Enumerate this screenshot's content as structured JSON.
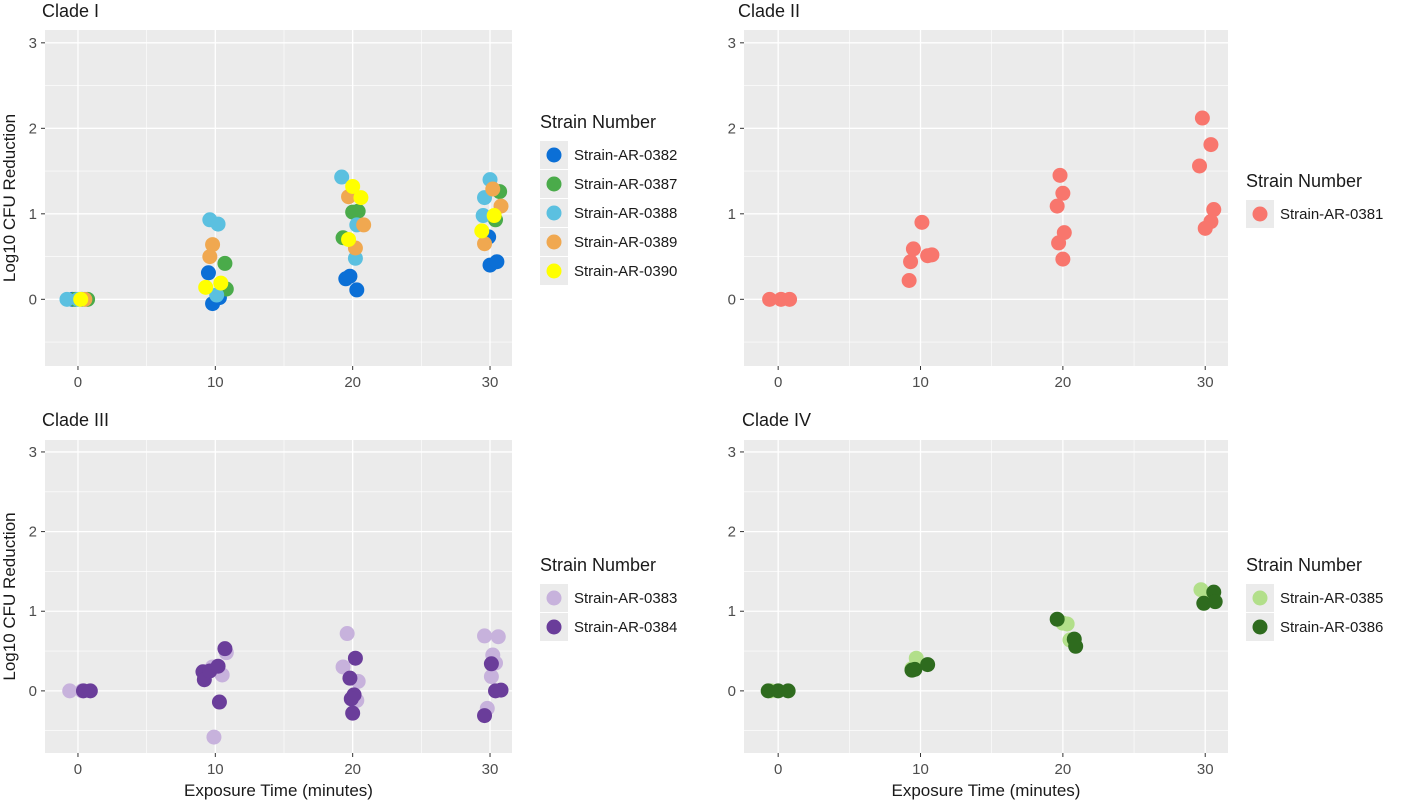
{
  "figure": {
    "xlabel": "Exposure Time (minutes)",
    "ylabel": "Log10 CFU Reduction",
    "legend_title": "Strain Number",
    "colors": {
      "panel_bg": "#ebebeb",
      "grid": "#ffffff"
    }
  },
  "chart_data": [
    {
      "type": "scatter",
      "title": "Clade I",
      "xlabel": "",
      "ylabel": "Log10 CFU Reduction",
      "x_ticks": [
        0,
        10,
        20,
        30
      ],
      "y_ticks": [
        0,
        1,
        2,
        3
      ],
      "xlim": [
        -2.4,
        31.6
      ],
      "ylim": [
        -0.78,
        3.15
      ],
      "grid": true,
      "legend_title": "Strain Number",
      "legend_position": "right",
      "series": [
        {
          "name": "Strain-AR-0382",
          "color": "#0b6fd6",
          "points": [
            [
              -0.4,
              0
            ],
            [
              0.3,
              0
            ],
            [
              9.5,
              0.31
            ],
            [
              9.8,
              -0.05
            ],
            [
              10.3,
              0.02
            ],
            [
              19.5,
              0.24
            ],
            [
              19.8,
              0.27
            ],
            [
              20.3,
              0.11
            ],
            [
              29.9,
              0.73
            ],
            [
              30.0,
              0.4
            ],
            [
              30.5,
              0.44
            ]
          ]
        },
        {
          "name": "Strain-AR-0387",
          "color": "#4aab4a",
          "points": [
            [
              -0.2,
              0
            ],
            [
              0.7,
              0
            ],
            [
              10.7,
              0.42
            ],
            [
              10.8,
              0.12
            ],
            [
              19.3,
              0.72
            ],
            [
              20.0,
              1.02
            ],
            [
              20.4,
              1.03
            ],
            [
              30.7,
              1.26
            ],
            [
              30.4,
              0.93
            ]
          ]
        },
        {
          "name": "Strain-AR-0388",
          "color": "#5bc0e0",
          "points": [
            [
              -0.8,
              0
            ],
            [
              0.0,
              0
            ],
            [
              9.6,
              0.93
            ],
            [
              10.2,
              0.88
            ],
            [
              10.1,
              0.05
            ],
            [
              19.2,
              1.43
            ],
            [
              20.3,
              0.87
            ],
            [
              20.2,
              0.48
            ],
            [
              29.5,
              0.98
            ],
            [
              29.6,
              1.19
            ],
            [
              30.0,
              1.4
            ]
          ]
        },
        {
          "name": "Strain-AR-0389",
          "color": "#f0a850",
          "points": [
            [
              0.5,
              0
            ],
            [
              9.8,
              0.64
            ],
            [
              9.6,
              0.5
            ],
            [
              19.7,
              1.2
            ],
            [
              20.2,
              0.6
            ],
            [
              20.8,
              0.87
            ],
            [
              30.2,
              1.29
            ],
            [
              30.8,
              1.09
            ],
            [
              29.6,
              0.65
            ]
          ]
        },
        {
          "name": "Strain-AR-0390",
          "color": "#ffff00",
          "points": [
            [
              0.2,
              0
            ],
            [
              9.3,
              0.14
            ],
            [
              10.4,
              0.19
            ],
            [
              19.7,
              0.7
            ],
            [
              20.0,
              1.32
            ],
            [
              20.6,
              1.19
            ],
            [
              29.4,
              0.8
            ],
            [
              30.3,
              0.98
            ]
          ]
        }
      ]
    },
    {
      "type": "scatter",
      "title": "Clade II",
      "xlabel": "",
      "ylabel": "",
      "x_ticks": [
        0,
        10,
        20,
        30
      ],
      "y_ticks": [
        0,
        1,
        2,
        3
      ],
      "xlim": [
        -2.4,
        31.6
      ],
      "ylim": [
        -0.78,
        3.15
      ],
      "grid": true,
      "legend_title": "Strain Number",
      "legend_position": "right",
      "series": [
        {
          "name": "Strain-AR-0381",
          "color": "#f8766d",
          "points": [
            [
              -0.6,
              0
            ],
            [
              0.2,
              0
            ],
            [
              0.8,
              0
            ],
            [
              9.3,
              0.44
            ],
            [
              9.2,
              0.22
            ],
            [
              9.5,
              0.59
            ],
            [
              10.1,
              0.9
            ],
            [
              10.5,
              0.51
            ],
            [
              10.8,
              0.52
            ],
            [
              19.6,
              1.09
            ],
            [
              19.8,
              1.45
            ],
            [
              20.0,
              1.24
            ],
            [
              19.7,
              0.66
            ],
            [
              20.1,
              0.78
            ],
            [
              20.0,
              0.47
            ],
            [
              29.6,
              1.56
            ],
            [
              29.8,
              2.12
            ],
            [
              30.4,
              1.81
            ],
            [
              30.6,
              1.05
            ],
            [
              30.4,
              0.91
            ],
            [
              30.0,
              0.83
            ]
          ]
        }
      ]
    },
    {
      "type": "scatter",
      "title": "Clade III",
      "xlabel": "Exposure Time (minutes)",
      "ylabel": "Log10 CFU Reduction",
      "x_ticks": [
        0,
        10,
        20,
        30
      ],
      "y_ticks": [
        0,
        1,
        2,
        3
      ],
      "xlim": [
        -2.4,
        31.6
      ],
      "ylim": [
        -0.78,
        3.15
      ],
      "grid": true,
      "legend_title": "Strain Number",
      "legend_position": "right",
      "series": [
        {
          "name": "Strain-AR-0383",
          "color": "#c7b2dc",
          "points": [
            [
              -0.6,
              0
            ],
            [
              0.3,
              0
            ],
            [
              9.9,
              -0.58
            ],
            [
              10.5,
              0.2
            ],
            [
              10.8,
              0.48
            ],
            [
              9.8,
              0.3
            ],
            [
              19.3,
              0.3
            ],
            [
              19.6,
              0.72
            ],
            [
              20.4,
              0.12
            ],
            [
              20.3,
              -0.12
            ],
            [
              29.6,
              0.69
            ],
            [
              29.8,
              -0.22
            ],
            [
              30.2,
              0.45
            ],
            [
              30.4,
              0.35
            ],
            [
              30.6,
              0.68
            ],
            [
              30.1,
              0.18
            ]
          ]
        },
        {
          "name": "Strain-AR-0384",
          "color": "#6a3d9a",
          "points": [
            [
              0.4,
              0
            ],
            [
              0.9,
              0
            ],
            [
              9.1,
              0.24
            ],
            [
              9.2,
              0.14
            ],
            [
              9.6,
              0.25
            ],
            [
              10.2,
              0.31
            ],
            [
              10.7,
              0.53
            ],
            [
              10.3,
              -0.14
            ],
            [
              19.8,
              0.16
            ],
            [
              20.2,
              0.41
            ],
            [
              20.1,
              -0.05
            ],
            [
              19.9,
              -0.1
            ],
            [
              20.0,
              -0.28
            ],
            [
              29.6,
              -0.31
            ],
            [
              30.1,
              0.34
            ],
            [
              30.4,
              0.0
            ],
            [
              30.8,
              0.01
            ]
          ]
        }
      ]
    },
    {
      "type": "scatter",
      "title": "Clade IV",
      "xlabel": "Exposure Time (minutes)",
      "ylabel": "",
      "x_ticks": [
        0,
        10,
        20,
        30
      ],
      "y_ticks": [
        0,
        1,
        2,
        3
      ],
      "xlim": [
        -2.4,
        31.6
      ],
      "ylim": [
        -0.78,
        3.15
      ],
      "grid": true,
      "legend_title": "Strain Number",
      "legend_position": "right",
      "series": [
        {
          "name": "Strain-AR-0385",
          "color": "#b2df8a",
          "points": [
            [
              -0.5,
              0
            ],
            [
              9.7,
              0.41
            ],
            [
              9.4,
              0.28
            ],
            [
              20.0,
              0.85
            ],
            [
              20.3,
              0.84
            ],
            [
              20.5,
              0.64
            ],
            [
              29.7,
              1.27
            ],
            [
              30.2,
              1.18
            ]
          ]
        },
        {
          "name": "Strain-AR-0386",
          "color": "#2e6b1e",
          "points": [
            [
              -0.7,
              0
            ],
            [
              0.0,
              0
            ],
            [
              0.7,
              0
            ],
            [
              9.4,
              0.26
            ],
            [
              9.6,
              0.27
            ],
            [
              10.5,
              0.33
            ],
            [
              19.6,
              0.9
            ],
            [
              20.8,
              0.65
            ],
            [
              20.9,
              0.56
            ],
            [
              29.9,
              1.1
            ],
            [
              30.6,
              1.24
            ],
            [
              30.7,
              1.12
            ]
          ]
        }
      ]
    }
  ]
}
